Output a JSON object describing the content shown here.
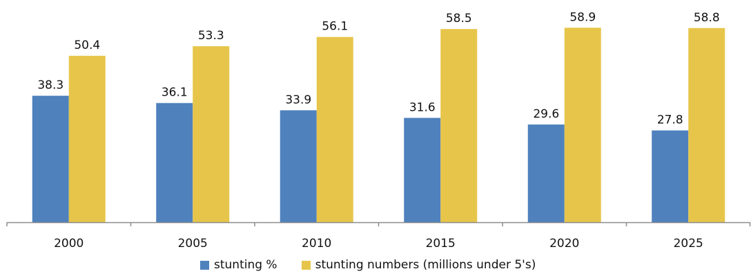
{
  "chart_data": {
    "type": "bar",
    "categories": [
      "2000",
      "2005",
      "2010",
      "2015",
      "2020",
      "2025"
    ],
    "series": [
      {
        "name": "stunting %",
        "color": "#4f81bd",
        "values": [
          38.3,
          36.1,
          33.9,
          31.6,
          29.6,
          27.8
        ]
      },
      {
        "name": "stunting numbers (millions under 5's)",
        "color": "#e6c54a",
        "values": [
          50.4,
          53.3,
          56.1,
          58.5,
          58.9,
          58.8
        ]
      }
    ],
    "title": "",
    "xlabel": "",
    "ylabel": "",
    "ylim": [
      0,
      65
    ],
    "y_axis_visible": false,
    "grid": false,
    "data_labels": true,
    "legend_position": "bottom"
  }
}
